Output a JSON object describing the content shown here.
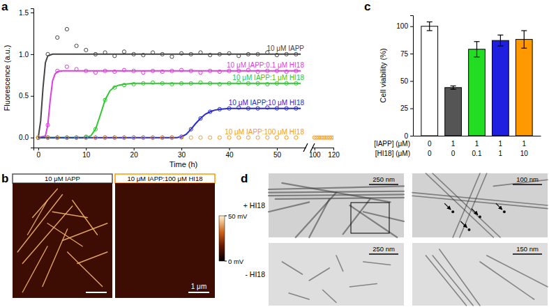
{
  "chart_data": [
    {
      "type": "scatter",
      "title": "a",
      "x_label": "Time (h)",
      "y_label": "Fluorescence (a.u.)",
      "xlim": [
        -1,
        120
      ],
      "xbreak": [
        56,
        98
      ],
      "xticks": [
        0,
        10,
        20,
        30,
        40,
        50,
        100,
        120
      ],
      "ylim": [
        -0.12,
        1.55
      ],
      "yticks": [
        {
          "value": 0,
          "label": "0.0"
        },
        {
          "value": 0.5,
          "label": "0.5"
        },
        {
          "value": 1,
          "label": "1.0"
        },
        {
          "value": 1.5,
          "label": "1.5"
        }
      ],
      "series": [
        {
          "name": "10 μM IAPP",
          "color": "#444444",
          "marker": "circle-open",
          "x": [
            0,
            2,
            4,
            6,
            8,
            10,
            12,
            14,
            16,
            18,
            20,
            22,
            24,
            26,
            28,
            30,
            32,
            34,
            36,
            38,
            40,
            42,
            44,
            46,
            48,
            50,
            52,
            54
          ],
          "values": [
            0,
            1.0,
            1.2,
            1.3,
            1.1,
            1.05,
            1.0,
            1.02,
            0.98,
            1.03,
            1.0,
            0.99,
            1.02,
            1.0,
            0.97,
            1.01,
            1.0,
            1.02,
            0.99,
            1.0,
            1.01,
            0.98,
            1.0,
            1.0,
            1.02,
            0.99,
            1.0,
            1.0
          ],
          "fit": {
            "x": [
              0,
              0.5,
              1,
              1.5,
              2,
              3,
              55
            ],
            "values": [
              0,
              0.2,
              0.6,
              0.9,
              0.98,
              1.0,
              1.0
            ]
          }
        },
        {
          "name": "10 μM IAPP:0.1 μM HI18",
          "color": "#e03ce0",
          "marker": "circle-open",
          "x": [
            0,
            2,
            4,
            6,
            8,
            10,
            12,
            14,
            16,
            18,
            20,
            22,
            24,
            26,
            28,
            30,
            32,
            34,
            36,
            38,
            40,
            42,
            44,
            46,
            48,
            50,
            52,
            54
          ],
          "values": [
            0,
            0.15,
            0.8,
            0.85,
            0.82,
            0.8,
            0.78,
            0.8,
            0.79,
            0.81,
            0.8,
            0.78,
            0.8,
            0.79,
            0.8,
            0.81,
            0.8,
            0.78,
            0.8,
            0.79,
            0.8,
            0.8,
            0.81,
            0.79,
            0.8,
            0.8,
            0.79,
            0.8
          ],
          "fit": {
            "x": [
              0,
              1.5,
              2,
              2.5,
              3,
              3.5,
              4,
              5,
              55
            ],
            "values": [
              0,
              0.02,
              0.15,
              0.45,
              0.68,
              0.76,
              0.79,
              0.8,
              0.8
            ]
          }
        },
        {
          "name": "10 μM IAPP:1 μM HI18",
          "color": "#2fc82f",
          "marker": "circle-open",
          "x": [
            0,
            2,
            4,
            6,
            8,
            10,
            12,
            14,
            16,
            18,
            20,
            22,
            24,
            26,
            28,
            30,
            32,
            34,
            36,
            38,
            40,
            42,
            44,
            46,
            48,
            50,
            52,
            54
          ],
          "values": [
            0,
            0,
            0,
            0,
            0,
            0.01,
            0.1,
            0.45,
            0.6,
            0.63,
            0.64,
            0.65,
            0.66,
            0.65,
            0.64,
            0.65,
            0.65,
            0.66,
            0.65,
            0.64,
            0.65,
            0.66,
            0.65,
            0.65,
            0.64,
            0.65,
            0.65,
            0.65
          ],
          "fit": {
            "x": [
              0,
              10,
              11,
              12,
              13,
              14,
              15,
              16,
              17,
              18,
              20,
              55
            ],
            "values": [
              0,
              0,
              0.02,
              0.1,
              0.27,
              0.45,
              0.56,
              0.61,
              0.63,
              0.64,
              0.65,
              0.65
            ]
          }
        },
        {
          "name": "10 μM IAPP:10 μM HI18",
          "color": "#2a2ad0",
          "marker": "circle-open",
          "x": [
            0,
            2,
            4,
            6,
            8,
            10,
            12,
            14,
            16,
            18,
            20,
            22,
            24,
            26,
            28,
            30,
            32,
            34,
            36,
            38,
            40,
            42,
            44,
            46,
            48,
            50,
            52,
            54
          ],
          "values": [
            0,
            0,
            0,
            0,
            0,
            0,
            0,
            0,
            0,
            0,
            0,
            0,
            0,
            0,
            0,
            0.01,
            0.1,
            0.23,
            0.31,
            0.34,
            0.35,
            0.36,
            0.35,
            0.35,
            0.36,
            0.35,
            0.35,
            0.35
          ],
          "fit": {
            "x": [
              0,
              29,
              30,
              31,
              32,
              33,
              34,
              35,
              36,
              37,
              38,
              40,
              55
            ],
            "values": [
              0,
              0,
              0.01,
              0.04,
              0.1,
              0.17,
              0.23,
              0.28,
              0.31,
              0.33,
              0.34,
              0.35,
              0.35
            ]
          }
        },
        {
          "name": "10 μM IAPP:100 μM HI18",
          "color": "#ff9a1a",
          "marker": "circle-open",
          "x": [
            0,
            2,
            4,
            6,
            8,
            10,
            12,
            14,
            16,
            18,
            20,
            22,
            24,
            26,
            28,
            30,
            32,
            34,
            36,
            38,
            40,
            42,
            44,
            46,
            48,
            50,
            52,
            54,
            100,
            102,
            104,
            106,
            108,
            110,
            112,
            114,
            116,
            118,
            120
          ],
          "values": [
            0,
            0,
            0,
            0,
            0,
            0,
            0,
            0,
            0,
            0,
            0,
            0,
            0,
            0,
            0,
            0,
            0,
            0,
            0,
            0,
            0,
            0,
            0,
            0,
            0,
            0,
            0,
            0,
            0,
            0,
            0,
            0,
            0,
            0,
            0,
            0,
            0,
            0,
            0
          ]
        }
      ]
    },
    {
      "type": "bar",
      "title": "c",
      "y_label": "Cell viability (%)",
      "categories": [
        null,
        null,
        null,
        null,
        null
      ],
      "values": [
        100,
        44,
        79,
        87,
        88
      ],
      "errors": [
        4,
        1.5,
        7,
        5,
        8
      ],
      "colors": [
        "#ffffff",
        "#555555",
        "#22dd22",
        "#1f1fe0",
        "#ff9900"
      ],
      "ylim": [
        0,
        110
      ],
      "yticks": [
        0,
        25,
        50,
        75,
        100
      ],
      "x_table": [
        {
          "label": "[IAPP] (μM)",
          "values": [
            0,
            1,
            1,
            1,
            1
          ]
        },
        {
          "label": "[HI18] (μM)",
          "values": [
            0,
            0,
            0.1,
            1,
            10
          ]
        }
      ]
    }
  ],
  "image_panels": [
    {
      "label": "b",
      "images": [
        {
          "title": "10 μM IAPP"
        },
        {
          "title": "10 μM IAPP:100 μM HI18",
          "scale_bar": "1 μm"
        }
      ],
      "colorbar": {
        "range": [
          0,
          50
        ],
        "ticks": [
          {
            "value": 0,
            "label": "0 mV"
          },
          {
            "value": 50,
            "label": "50 mV"
          }
        ]
      }
    },
    {
      "label": "d",
      "rows": [
        {
          "label": "+ HI18",
          "images": [
            {
              "scale_bar": "250 nm"
            },
            {
              "scale_bar": "100 nm"
            }
          ]
        },
        {
          "label": "- HI18",
          "images": [
            {
              "scale_bar": "250 nm"
            },
            {
              "scale_bar": "150 nm"
            }
          ]
        }
      ]
    }
  ]
}
